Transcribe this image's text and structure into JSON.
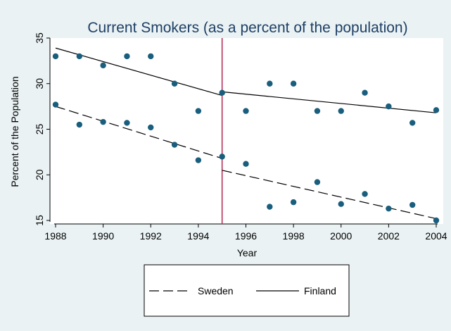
{
  "chart_data": {
    "type": "scatter",
    "title": "Current Smokers (as a percent of the population)",
    "xlabel": "Year",
    "ylabel": "Percent of the Population",
    "xlim": [
      1988,
      2004
    ],
    "ylim": [
      15,
      35
    ],
    "x_ticks": [
      1988,
      1990,
      1992,
      1994,
      1996,
      1998,
      2000,
      2002,
      2004
    ],
    "y_ticks": [
      15,
      20,
      25,
      30,
      35
    ],
    "grid": false,
    "legend": "bottom",
    "intervention_year": 1995,
    "marker_color": "#1a5e7d",
    "vline_color": "#b5305a",
    "series": [
      {
        "name": "Finland",
        "line_style": "solid",
        "x": [
          1988,
          1989,
          1990,
          1991,
          1992,
          1993,
          1994,
          1995,
          1996,
          1997,
          1998,
          1999,
          2000,
          2001,
          2002,
          2003,
          2004
        ],
        "values": [
          33.0,
          33.0,
          32.0,
          33.0,
          33.0,
          30.0,
          27.0,
          29.0,
          27.0,
          30.0,
          30.0,
          27.0,
          27.0,
          29.0,
          27.5,
          25.7,
          27.1
        ],
        "fit_segments": [
          {
            "x": [
              1988,
              1995
            ],
            "y": [
              33.9,
              28.7
            ]
          },
          {
            "x": [
              1995,
              2004
            ],
            "y": [
              29.1,
              26.8
            ]
          }
        ]
      },
      {
        "name": "Sweden",
        "line_style": "dashed",
        "x": [
          1988,
          1989,
          1990,
          1991,
          1992,
          1993,
          1994,
          1995,
          1996,
          1997,
          1998,
          1999,
          2000,
          2001,
          2002,
          2003,
          2004
        ],
        "values": [
          27.7,
          25.5,
          25.8,
          25.7,
          25.2,
          23.3,
          21.6,
          22.0,
          21.2,
          16.5,
          17.0,
          19.2,
          16.8,
          17.9,
          16.3,
          16.7,
          15.0
        ],
        "fit_segments": [
          {
            "x": [
              1988,
              1995
            ],
            "y": [
              27.5,
              21.8
            ]
          },
          {
            "x": [
              1995,
              2004
            ],
            "y": [
              20.5,
              15.2
            ]
          }
        ]
      }
    ],
    "legend_order": [
      "Sweden",
      "Finland"
    ]
  }
}
